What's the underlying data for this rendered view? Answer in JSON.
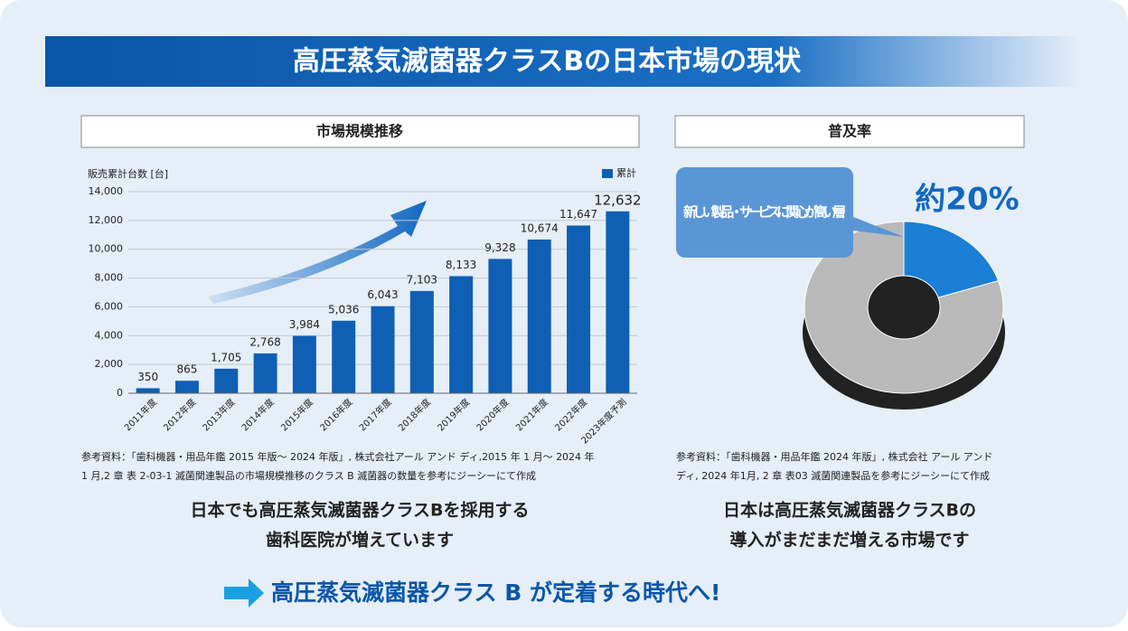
{
  "header": {
    "title": "高圧蒸気滅菌器クラスBの日本市場の現状"
  },
  "chart_data": [
    {
      "type": "bar",
      "title": "市場規模推移",
      "ylabel": "販売累計台数 [台]",
      "legend": "累計",
      "color": "#0f5fb4",
      "categories": [
        "2011年度",
        "2012年度",
        "2013年度",
        "2014年度",
        "2015年度",
        "2016年度",
        "2017年度",
        "2018年度",
        "2019年度",
        "2020年度",
        "2021年度",
        "2022年度",
        "2023年度予測"
      ],
      "values": [
        350,
        865,
        1705,
        2768,
        3984,
        5036,
        6043,
        7103,
        8133,
        9328,
        10674,
        11647,
        12632
      ],
      "value_labels": [
        "350",
        "865",
        "1,705",
        "2,768",
        "3,984",
        "5,036",
        "6,043",
        "7,103",
        "8,133",
        "9,328",
        "10,674",
        "11,647",
        "12,632"
      ],
      "ylim": [
        0,
        14000
      ],
      "yticks": [
        0,
        {
          "value": 2000,
          "label": "2,000"
        },
        {
          "value": 4000,
          "label": "4,000"
        },
        {
          "value": 6000,
          "label": "6,000"
        },
        {
          "value": 8000,
          "label": "8,000"
        },
        {
          "value": 10000,
          "label": "10,000"
        },
        {
          "value": 12000,
          "label": "12,000"
        },
        {
          "value": 14000,
          "label": "14,000"
        }
      ],
      "grid": true,
      "source": [
        "参考資料：「歯科機器・用品年鑑 2015 年版～ 2024 年版」, 株式会社アール アンド ディ,2015 年 1 月～ 2024 年",
        "1 月,2 章 表 2-03-1 滅菌関連製品の市場規模推移のクラス B 滅菌器の数量を参考にジーシーにて作成"
      ],
      "caption": [
        "日本でも高圧蒸気滅菌器クラスBを採用する",
        "歯科医院が増えています"
      ]
    },
    {
      "type": "pie",
      "title": "普及率",
      "categories": [
        "新しい製品・サービスに関心が高い層",
        null
      ],
      "values": [
        20,
        80
      ],
      "value_labels": [
        "約20%",
        null
      ],
      "colors": [
        "#1b7fd6",
        "#b9b9b9"
      ],
      "source": [
        "参考資料：「歯科機器・用品年鑑 2024 年版」, 株式会社 アール アンド",
        "ディ, 2024 年1月, 2 章 表03 滅菌関連製品を参考にジーシーにて作成"
      ],
      "caption": [
        "日本は高圧蒸気滅菌器クラスBの",
        "導入がまだまだ増える市場です"
      ]
    }
  ],
  "footer": {
    "text": "高圧蒸気滅菌器クラス B が定着する時代へ!"
  }
}
